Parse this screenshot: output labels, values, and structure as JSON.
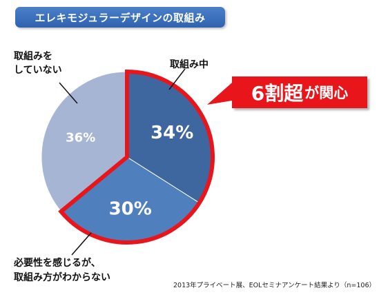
{
  "title": "エレキモジュラーデザインの取組み",
  "chart_data": {
    "type": "pie",
    "start_angle_deg": 0,
    "direction": "clockwise",
    "slices": [
      {
        "label": "取組み中",
        "value": 34,
        "value_label": "34%",
        "color": "#3f679f"
      },
      {
        "label": "必要性を感じるが、取組み方がわからない",
        "value": 30,
        "value_label": "30%",
        "color": "#4f7fbd"
      },
      {
        "label": "取組みをしていない",
        "value": 36,
        "value_label": "36%",
        "color": "#a6b5d4"
      }
    ],
    "highlight_slices": [
      0,
      1
    ],
    "highlight_color": "#e8151b"
  },
  "labels": {
    "in_progress": "取組み中",
    "not_doing_line1": "取組みを",
    "not_doing_line2": "していない",
    "needed_line1": "必要性を感じるが、",
    "needed_line2": "取組み方がわからない"
  },
  "callout": {
    "main": "6割超",
    "sub": "が関心"
  },
  "source": "2013年プライベート展、EOLセミナアンケート結果より（n=106）"
}
